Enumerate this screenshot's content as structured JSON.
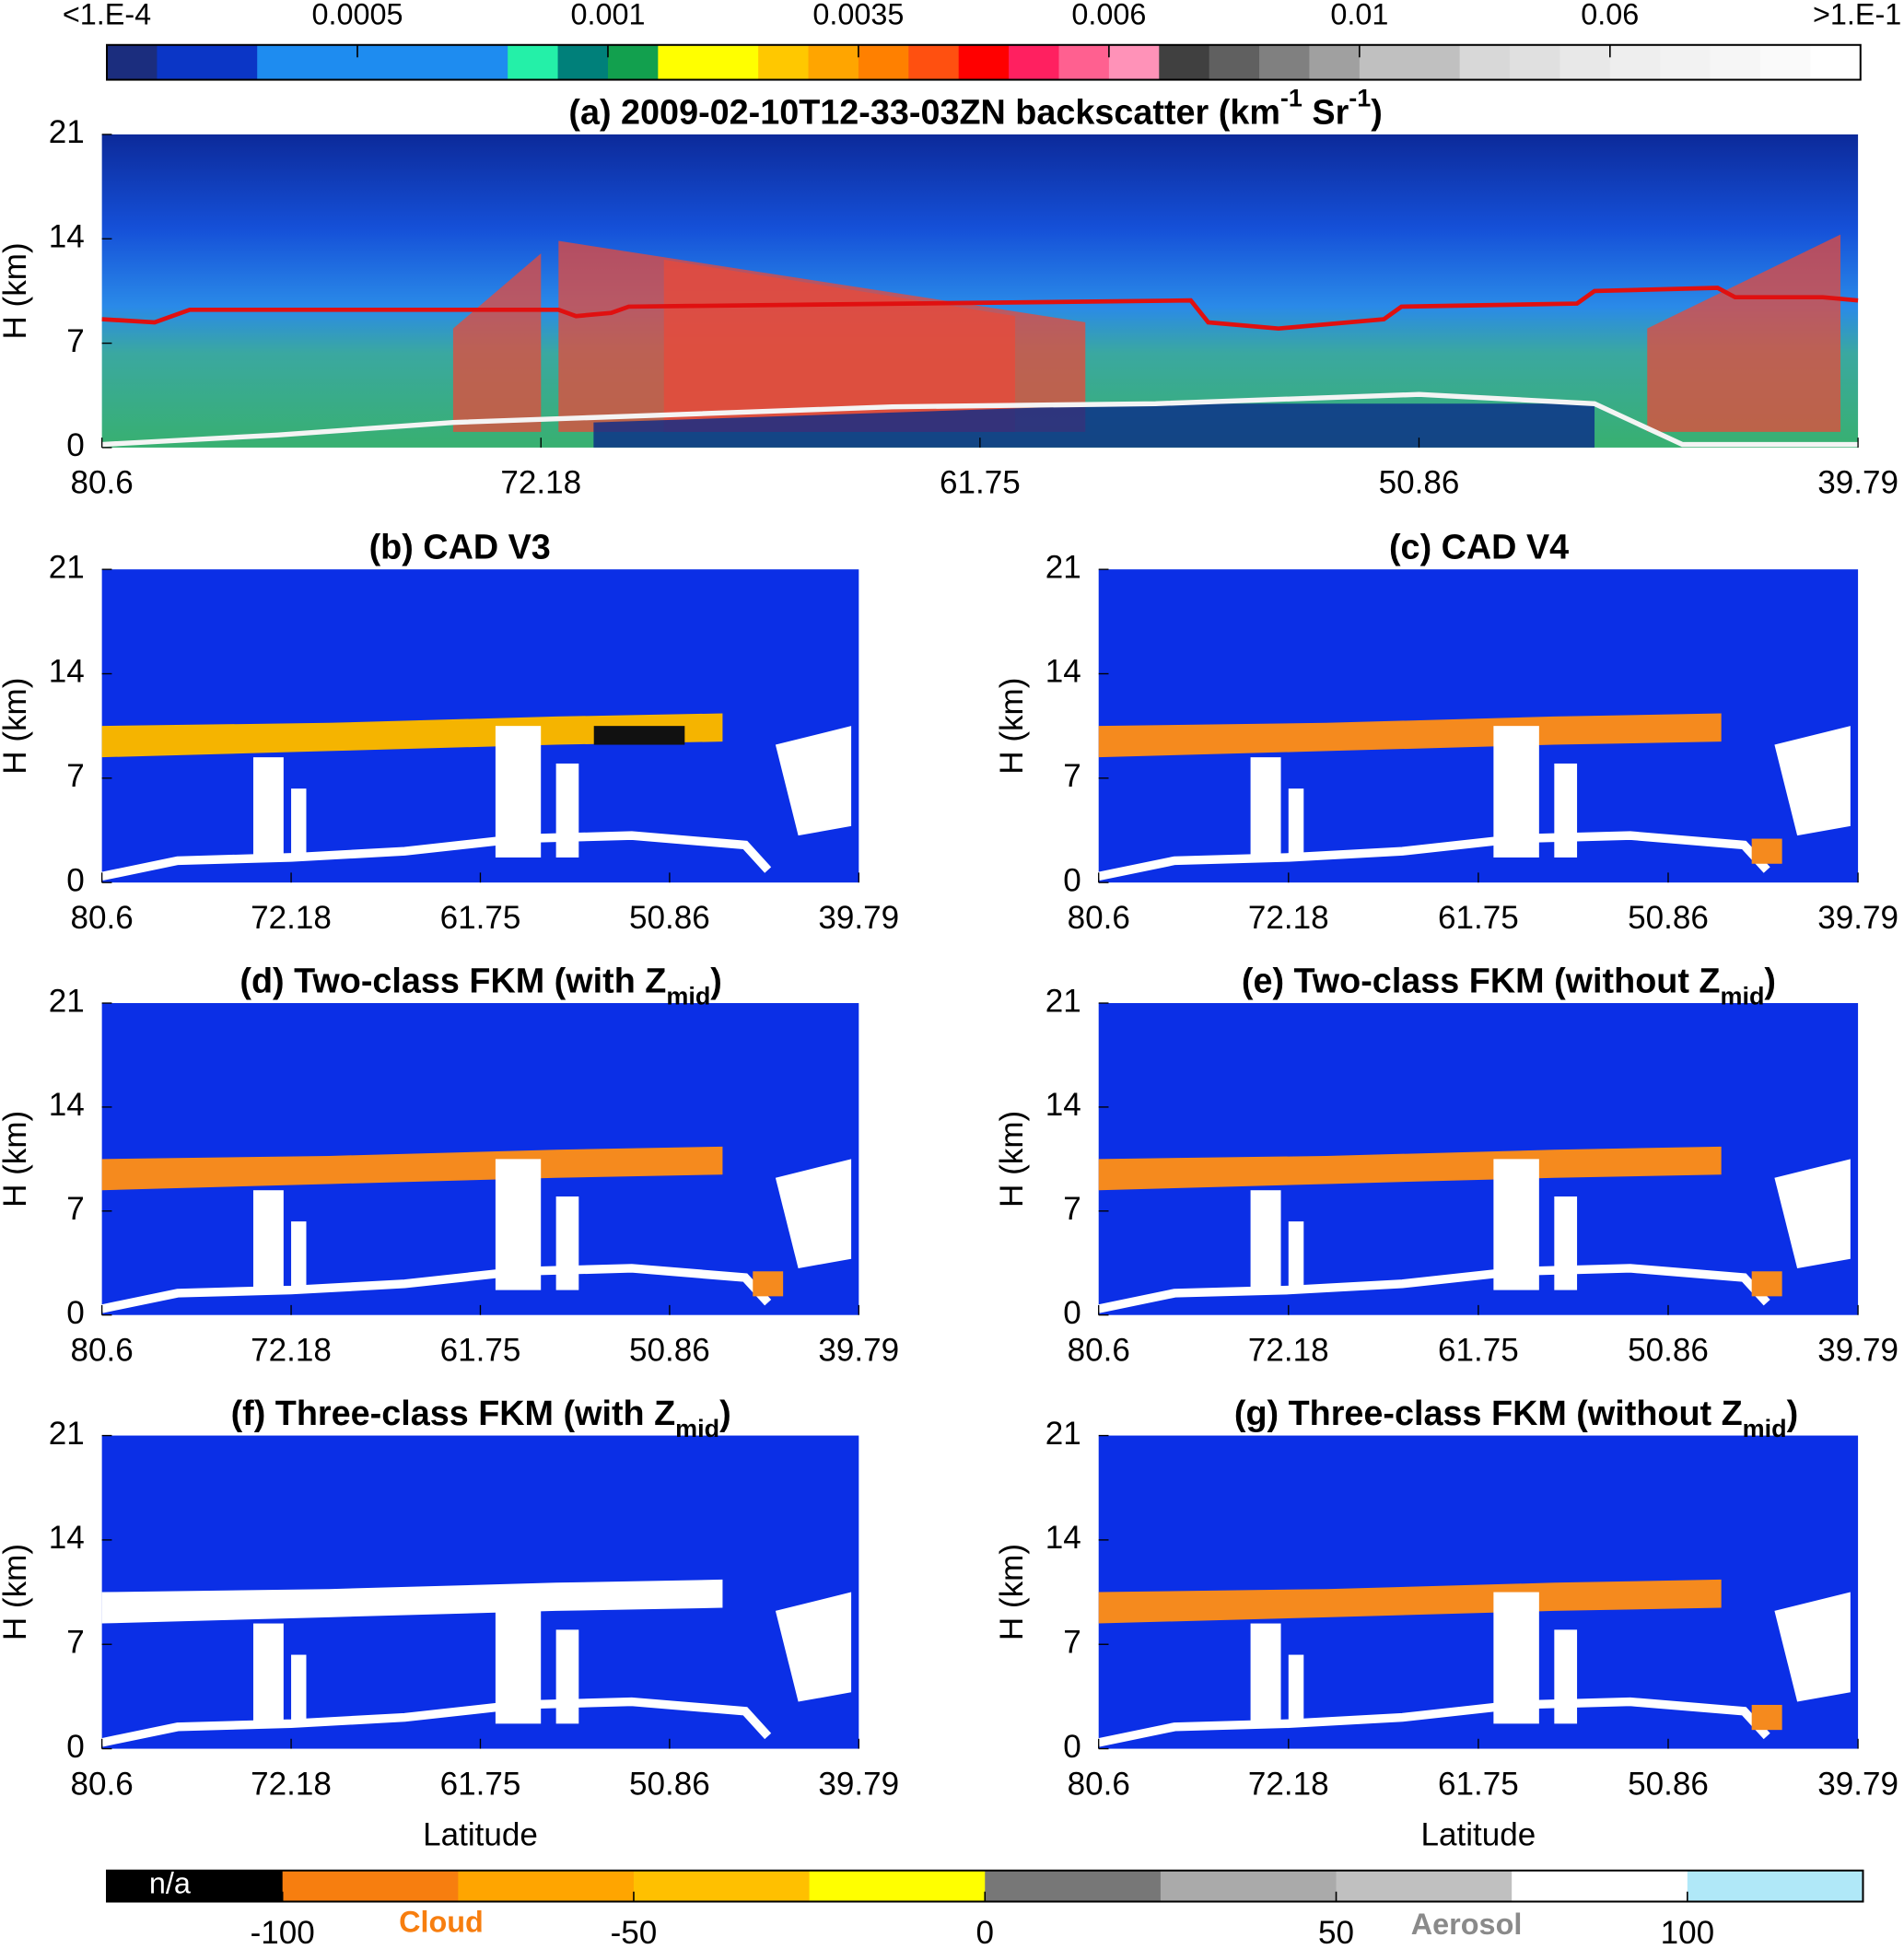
{
  "colorbar": {
    "colors": [
      "#1b2d7e",
      "#0b36c6",
      "#0b36c6",
      "#1e8cf0",
      "#1e8cf0",
      "#1e8cf0",
      "#1e8cf0",
      "#1e8cf0",
      "#24f0a8",
      "#00807a",
      "#12a04e",
      "#ffff00",
      "#ffff00",
      "#ffc800",
      "#ffa500",
      "#ff8000",
      "#ff5010",
      "#ff0000",
      "#ff2060",
      "#ff6090",
      "#ff92b8",
      "#404040",
      "#606060",
      "#808080",
      "#a0a0a0",
      "#c0c0c0",
      "#c0c0c0",
      "#d8d8d8",
      "#e0e0e0",
      "#e8e8e8",
      "#eeeeee",
      "#f2f2f2",
      "#f6f6f6",
      "#fafafa",
      "#ffffff"
    ],
    "labels": [
      "<1.E-4",
      "0.0005",
      "0.001",
      "0.0035",
      "0.006",
      "0.01",
      "0.06",
      ">1.E-1"
    ]
  },
  "chart_data": [
    {
      "type": "curtain",
      "title": [
        {
          "text": "(a) 2009-02-10T12-33-03ZN  backscatter (km"
        },
        {
          "text": "-1",
          "pos": "sup"
        },
        {
          "text": " Sr"
        },
        {
          "text": "-1",
          "pos": "sup"
        },
        {
          "text": ")"
        }
      ],
      "ylabel": "H (km)",
      "ylim": [
        0,
        21
      ],
      "yticks": [
        0,
        7,
        14,
        21
      ],
      "categories": [
        "80.6",
        "72.18",
        "61.75",
        "50.86",
        "39.79"
      ]
    },
    {
      "type": "classification",
      "title": [
        {
          "text": "(b) CAD V3"
        }
      ],
      "ylabel": "H (km)",
      "ylim": [
        0,
        21
      ],
      "yticks": [
        0,
        7,
        14,
        21
      ],
      "categories": [
        "80.6",
        "72.18",
        "61.75",
        "50.86",
        "39.79"
      ]
    },
    {
      "type": "classification",
      "title": [
        {
          "text": "(c) CAD V4"
        }
      ],
      "ylabel": "H (km)",
      "ylim": [
        0,
        21
      ],
      "yticks": [
        0,
        7,
        14,
        21
      ],
      "categories": [
        "80.6",
        "72.18",
        "61.75",
        "50.86",
        "39.79"
      ]
    },
    {
      "type": "classification",
      "title": [
        {
          "text": "(d) Two-class FKM (with Z"
        },
        {
          "text": "mid",
          "pos": "sub"
        },
        {
          "text": ")"
        }
      ],
      "ylabel": "H (km)",
      "ylim": [
        0,
        21
      ],
      "yticks": [
        0,
        7,
        14,
        21
      ],
      "categories": [
        "80.6",
        "72.18",
        "61.75",
        "50.86",
        "39.79"
      ]
    },
    {
      "type": "classification",
      "title": [
        {
          "text": "(e) Two-class FKM (without Z"
        },
        {
          "text": "mid",
          "pos": "sub"
        },
        {
          "text": ")"
        }
      ],
      "ylabel": "H (km)",
      "ylim": [
        0,
        21
      ],
      "yticks": [
        0,
        7,
        14,
        21
      ],
      "categories": [
        "80.6",
        "72.18",
        "61.75",
        "50.86",
        "39.79"
      ]
    },
    {
      "type": "classification",
      "title": [
        {
          "text": "(f) Three-class FKM (with Z"
        },
        {
          "text": "mid",
          "pos": "sub"
        },
        {
          "text": ")"
        }
      ],
      "ylabel": "H (km)",
      "xlabel": "Latitude",
      "ylim": [
        0,
        21
      ],
      "yticks": [
        0,
        7,
        14,
        21
      ],
      "categories": [
        "80.6",
        "72.18",
        "61.75",
        "50.86",
        "39.79"
      ]
    },
    {
      "type": "classification",
      "title": [
        {
          "text": "(g) Three-class FKM (without Z"
        },
        {
          "text": "mid",
          "pos": "sub"
        },
        {
          "text": ")"
        }
      ],
      "ylabel": "H (km)",
      "xlabel": "Latitude",
      "ylim": [
        0,
        21
      ],
      "yticks": [
        0,
        7,
        14,
        21
      ],
      "categories": [
        "80.6",
        "72.18",
        "61.75",
        "50.86",
        "39.79"
      ]
    }
  ],
  "legend": {
    "colors": [
      "#000000",
      "#f77e0f",
      "#ffa500",
      "#ffc000",
      "#ffff00",
      "#777777",
      "#aaaaaa",
      "#c0c0c0",
      "#ffffff",
      "#b0e8f8"
    ],
    "clim": [
      -125,
      125
    ],
    "ticks": [
      -100,
      -50,
      0,
      50,
      100
    ],
    "na_label": "n/a",
    "cloud_label": "Cloud",
    "aerosol_label": "Aerosol"
  }
}
